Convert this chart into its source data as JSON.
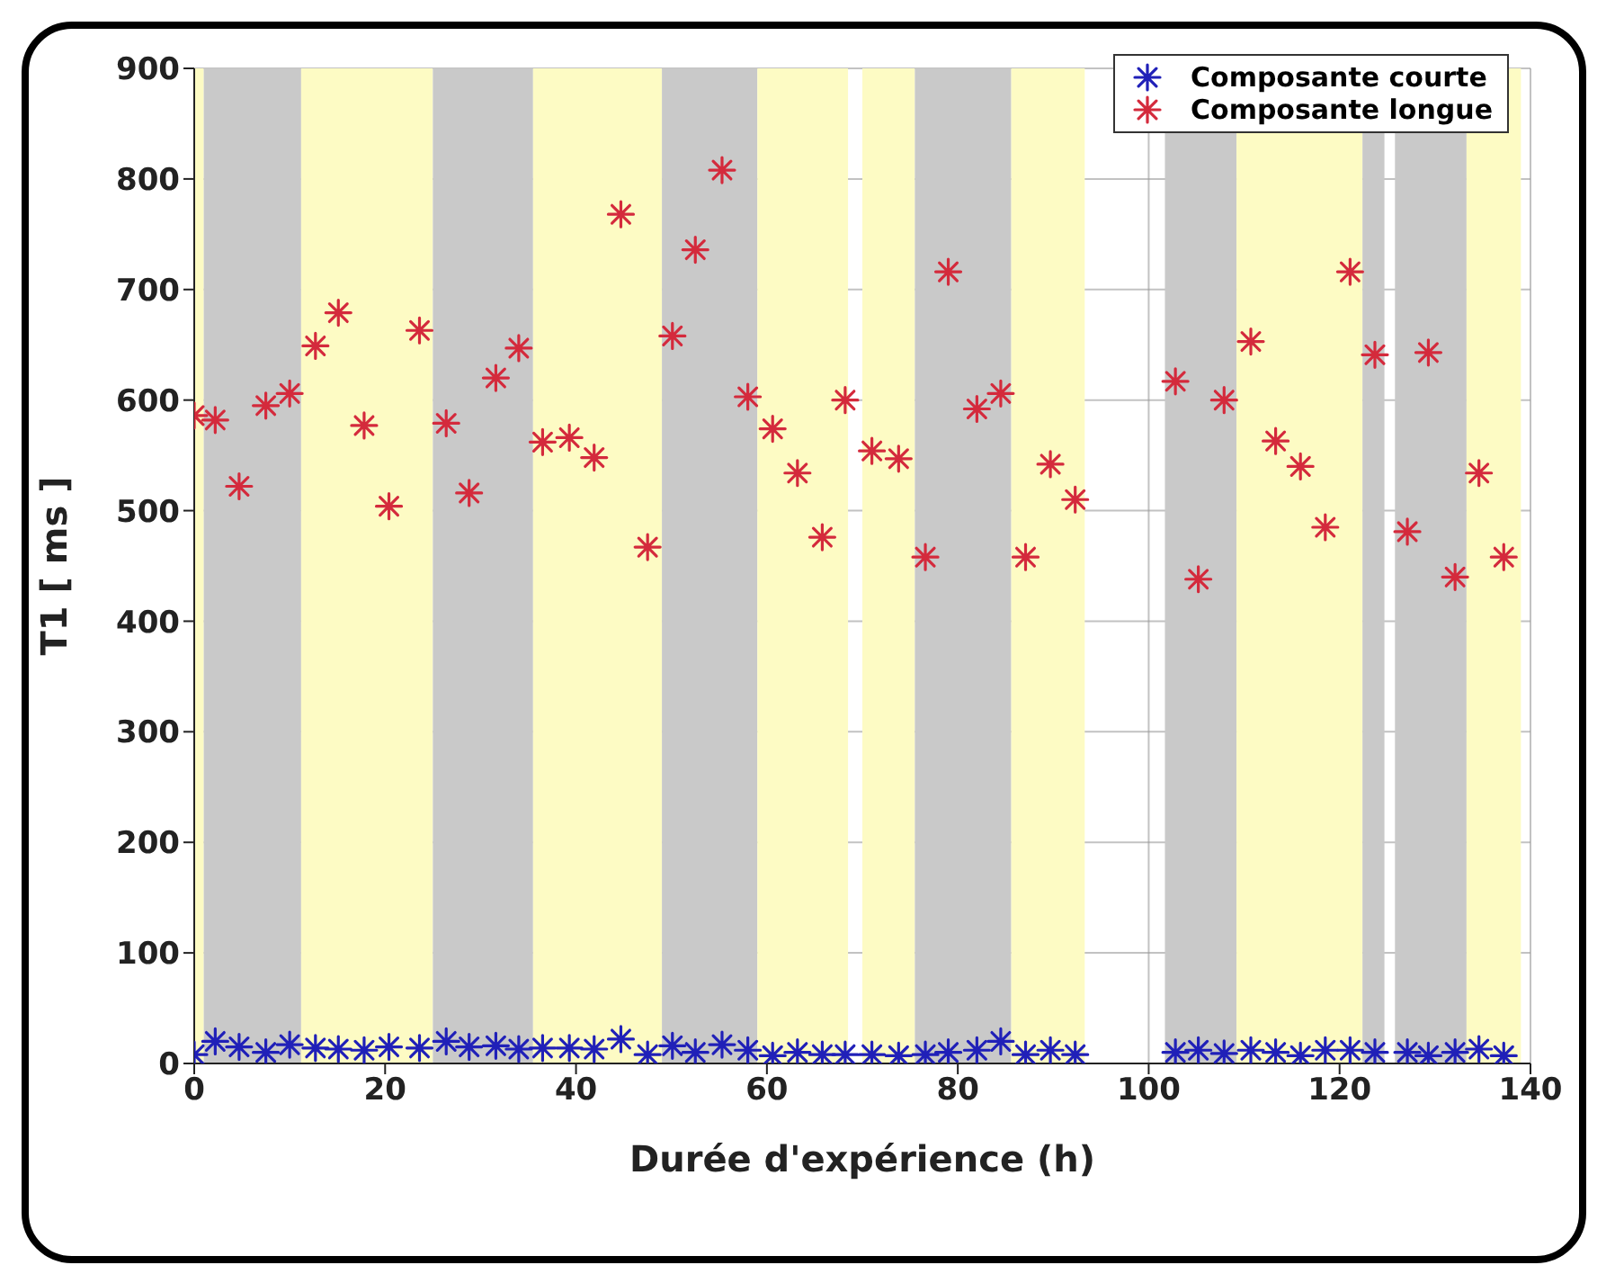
{
  "chart_data": {
    "type": "scatter",
    "xlabel": "Durée d'expérience (h)",
    "ylabel": "T1 [ ms ]",
    "x": [
      0,
      2.2,
      4.7,
      7.5,
      10,
      12.7,
      15.1,
      17.8,
      20.4,
      23.6,
      26.4,
      28.8,
      31.6,
      34,
      36.5,
      39.3,
      41.9,
      44.7,
      47.5,
      50.1,
      52.5,
      55.3,
      58,
      60.6,
      63.2,
      65.8,
      68.2,
      71,
      73.8,
      76.6,
      79,
      82,
      84.5,
      87.1,
      89.7,
      92.3,
      102.8,
      105.2,
      107.9,
      110.7,
      113.3,
      115.9,
      118.5,
      121.1,
      123.7,
      127.1,
      129.3,
      132.1,
      134.6,
      137.2
    ],
    "series": [
      {
        "name": "Composante courte",
        "color": "#2020b8",
        "values": [
          8,
          20,
          15,
          10,
          17,
          14,
          13,
          12,
          15,
          14,
          20,
          15,
          16,
          13,
          14,
          14,
          13,
          22,
          8,
          16,
          10,
          17,
          12,
          7,
          10,
          8,
          8,
          8,
          7,
          8,
          10,
          12,
          20,
          8,
          12,
          8,
          10,
          12,
          9,
          12,
          10,
          7,
          12,
          12,
          10,
          10,
          7,
          10,
          13,
          7
        ]
      },
      {
        "name": "Composante longue",
        "color": "#d42a3c",
        "values": [
          586,
          582,
          522,
          595,
          606,
          649,
          679,
          577,
          504,
          663,
          579,
          516,
          620,
          647,
          562,
          566,
          548,
          768,
          467,
          658,
          736,
          808,
          603,
          574,
          534,
          476,
          600,
          554,
          547,
          458,
          716,
          592,
          606,
          458,
          542,
          510,
          617,
          438,
          600,
          653,
          563,
          540,
          485,
          716,
          641,
          481,
          643,
          440,
          534,
          458
        ]
      }
    ],
    "xlim": [
      0,
      140
    ],
    "xticks": [
      0,
      20,
      40,
      60,
      80,
      100,
      120,
      140
    ],
    "ylim": [
      0,
      900
    ],
    "yticks": [
      0,
      100,
      200,
      300,
      400,
      500,
      600,
      700,
      800,
      900
    ],
    "grid": true,
    "legend": "top right",
    "marker": "cross",
    "bands": [
      {
        "axis": "x",
        "from": 0,
        "to": 1,
        "color": "#fdfbc4"
      },
      {
        "axis": "x",
        "from": 1,
        "to": 11.2,
        "color": "#c9c9c9"
      },
      {
        "axis": "x",
        "from": 11.2,
        "to": 25,
        "color": "#fdfbc4"
      },
      {
        "axis": "x",
        "from": 25,
        "to": 35.5,
        "color": "#c9c9c9"
      },
      {
        "axis": "x",
        "from": 35.5,
        "to": 49,
        "color": "#fdfbc4"
      },
      {
        "axis": "x",
        "from": 49,
        "to": 59,
        "color": "#c9c9c9"
      },
      {
        "axis": "x",
        "from": 59,
        "to": 68.5,
        "color": "#fdfbc4"
      },
      {
        "axis": "x",
        "from": 70,
        "to": 75.5,
        "color": "#fdfbc4"
      },
      {
        "axis": "x",
        "from": 75.5,
        "to": 85.6,
        "color": "#c9c9c9"
      },
      {
        "axis": "x",
        "from": 85.6,
        "to": 93.3,
        "color": "#fdfbc4"
      },
      {
        "axis": "x",
        "from": 101.7,
        "to": 109.2,
        "color": "#c9c9c9"
      },
      {
        "axis": "x",
        "from": 109.2,
        "to": 122.4,
        "color": "#fdfbc4"
      },
      {
        "axis": "x",
        "from": 122.4,
        "to": 124.7,
        "color": "#c9c9c9"
      },
      {
        "axis": "x",
        "from": 125.8,
        "to": 133.3,
        "color": "#c9c9c9"
      },
      {
        "axis": "x",
        "from": 133.3,
        "to": 139,
        "color": "#fdfbc4"
      }
    ]
  }
}
